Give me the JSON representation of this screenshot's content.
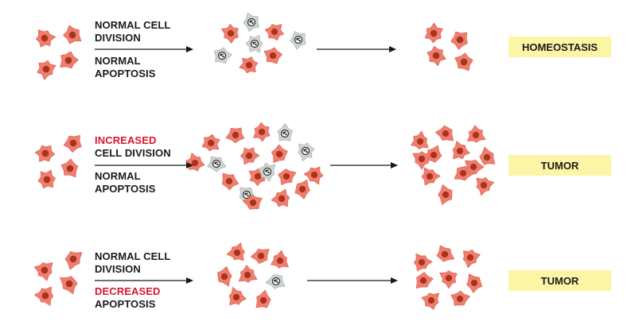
{
  "colors": {
    "living_cell_fill": "#f07e6e",
    "living_cell_nucleus": "#a8331f",
    "apoptotic_cell_fill": "#cdd3cf",
    "apoptotic_nucleus": "#2b2b2b",
    "highlight_text": "#d6182a",
    "outcome_box": "#fdf5a6",
    "arrow": "#1a1a1a"
  },
  "rows": [
    {
      "division_line1": "NORMAL CELL",
      "division_line2": "DIVISION",
      "apoptosis_line1": "NORMAL",
      "apoptosis_line2": "APOPTOSIS",
      "outcome": "HOMEOSTASIS"
    },
    {
      "division_line1": "INCREASED",
      "division_line2": "CELL DIVISION",
      "apoptosis_line1": "NORMAL",
      "apoptosis_line2": "APOPTOSIS",
      "outcome": "TUMOR"
    },
    {
      "division_line1": "NORMAL CELL",
      "division_line2": "DIVISION",
      "apoptosis_line1": "DECREASED",
      "apoptosis_line2": "APOPTOSIS",
      "outcome": "TUMOR"
    }
  ]
}
